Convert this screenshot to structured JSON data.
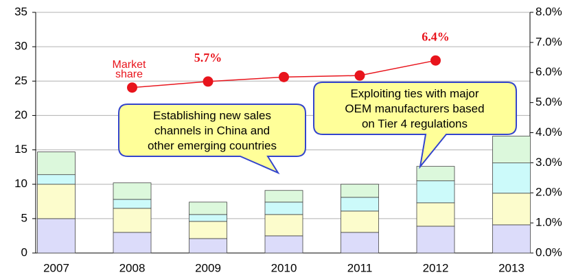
{
  "chart_data": {
    "type": "bar",
    "categories": [
      "2007",
      "2008",
      "2009",
      "2010",
      "2011",
      "2012",
      "2013"
    ],
    "series": [
      {
        "color": "#dcdcfa",
        "values": [
          5.0,
          3.0,
          2.1,
          2.5,
          3.0,
          3.9,
          4.1
        ]
      },
      {
        "color": "#fcfccc",
        "values": [
          5.0,
          3.5,
          2.5,
          3.1,
          3.1,
          3.4,
          4.6
        ]
      },
      {
        "color": "#ccfafa",
        "values": [
          1.4,
          1.3,
          1.0,
          1.8,
          2.0,
          3.2,
          4.4
        ]
      },
      {
        "color": "#dcf8dc",
        "values": [
          3.3,
          2.4,
          1.8,
          1.7,
          1.9,
          2.1,
          3.9
        ]
      },
      {
        "type": "line",
        "axis": "y2",
        "color": "#e8141c",
        "values": [
          null,
          5.5,
          5.7,
          5.85,
          5.9,
          6.4,
          null
        ],
        "value_labels": [
          null,
          null,
          "5.7%",
          null,
          null,
          "6.4%",
          null
        ]
      }
    ],
    "ylim": [
      0,
      35
    ],
    "yticks": [
      0,
      5,
      10,
      15,
      20,
      25,
      30,
      35
    ],
    "y2lim": [
      0,
      8
    ],
    "y2ticks": [
      {
        "value": 0,
        "label": "0.0%"
      },
      {
        "value": 1,
        "label": "1.0%"
      },
      {
        "value": 2,
        "label": "2.0%"
      },
      {
        "value": 3,
        "label": "3.0%"
      },
      {
        "value": 4,
        "label": "4.0%"
      },
      {
        "value": 5,
        "label": "5.0%"
      },
      {
        "value": 6,
        "label": "6.0%"
      },
      {
        "value": 7,
        "label": "7.0%"
      },
      {
        "value": 8,
        "label": "8.0%"
      }
    ],
    "grid": true,
    "annotations": [
      [
        "Market",
        "share"
      ],
      [
        "Establishing new sales",
        "channels in China and",
        "other emerging countries"
      ],
      [
        "Exploiting ties with major",
        "OEM manufacturers based",
        "on Tier 4 regulations"
      ]
    ]
  }
}
